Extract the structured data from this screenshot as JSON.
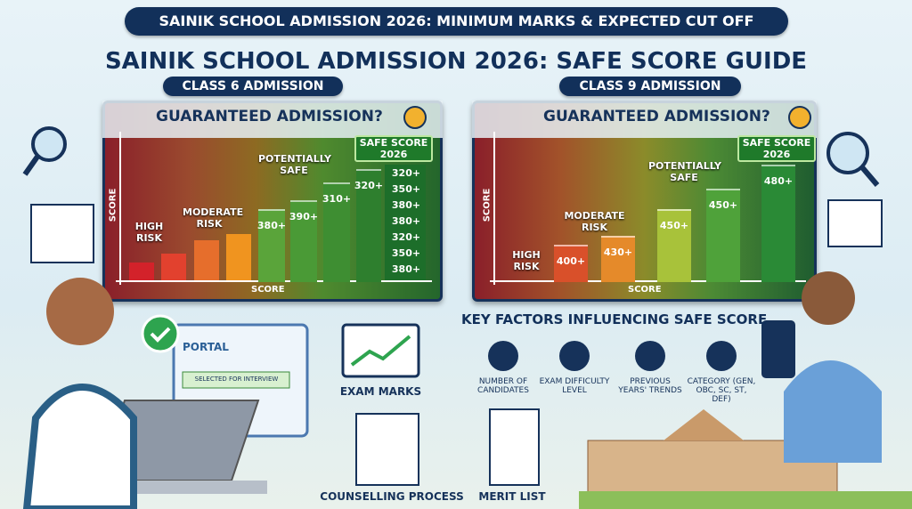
{
  "banner": "SAINIK SCHOOL ADMISSION 2026: MINIMUM MARKS & EXPECTED CUT OFF",
  "title": "SAINIK SCHOOL ADMISSION 2026: SAFE SCORE GUIDE",
  "panels": [
    {
      "heading": "CLASS 6 ADMISSION",
      "question": "GUARANTEED ADMISSION?",
      "y_label": "SCORE",
      "x_label": "SCORE",
      "high_risk": "HIGH RISK",
      "moderate_risk": "MODERATE RISK",
      "potentially_safe": "POTENTIALLY SAFE",
      "safe_score": "SAFE SCORE 2026",
      "bar_labels": [
        "380+",
        "390+",
        "310+",
        "320+"
      ],
      "safe_list": [
        "320+",
        "350+",
        "380+",
        "380+",
        "320+",
        "350+",
        "380+"
      ]
    },
    {
      "heading": "CLASS 9 ADMISSION",
      "question": "GUARANTEED ADMISSION?",
      "y_label": "SCORE",
      "x_label": "SCORE",
      "high_risk": "HIGH RISK",
      "moderate_risk": "MODERATE RISK",
      "potentially_safe": "POTENTIALLY SAFE",
      "safe_score": "SAFE SCORE 2026",
      "bar_labels": [
        "400+",
        "430+",
        "450+",
        "450+",
        "480+"
      ]
    }
  ],
  "portal": {
    "title": "PORTAL",
    "status": "SELECTED FOR INTERVIEW"
  },
  "steps": [
    "EXAM MARKS",
    "COUNSELLING PROCESS",
    "MERIT LIST"
  ],
  "factors": {
    "title": "KEY FACTORS INFLUENCING SAFE SCORE",
    "items": [
      "NUMBER OF CANDIDATES",
      "EXAM DIFFICULTY LEVEL",
      "PREVIOUS YEARS' TRENDS",
      "CATEGORY (GEN, OBC, SC, ST, DEF)"
    ]
  }
}
